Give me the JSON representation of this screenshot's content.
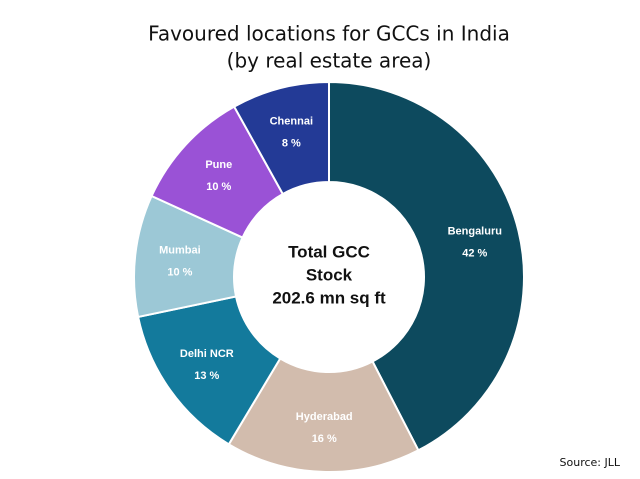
{
  "chart_data": {
    "type": "donut",
    "title": "Favoured locations for GCCs in India",
    "subtitle": "(by real estate area)",
    "categories": [
      "Bengaluru",
      "Hyderabad",
      "Delhi NCR",
      "Mumbai",
      "Pune",
      "Chennai"
    ],
    "values": [
      42,
      16,
      13,
      10,
      10,
      8
    ],
    "value_labels": [
      "42 %",
      "16 %",
      "13 %",
      "10 %",
      "10 %",
      "8 %"
    ],
    "colors": [
      "#0d4a5e",
      "#d2bcad",
      "#137a9c",
      "#9cc8d6",
      "#9a52d6",
      "#233a96"
    ],
    "center_label": [
      "Total GCC",
      "Stock",
      "202.6 mn sq ft"
    ],
    "source": "Source: JLL"
  }
}
